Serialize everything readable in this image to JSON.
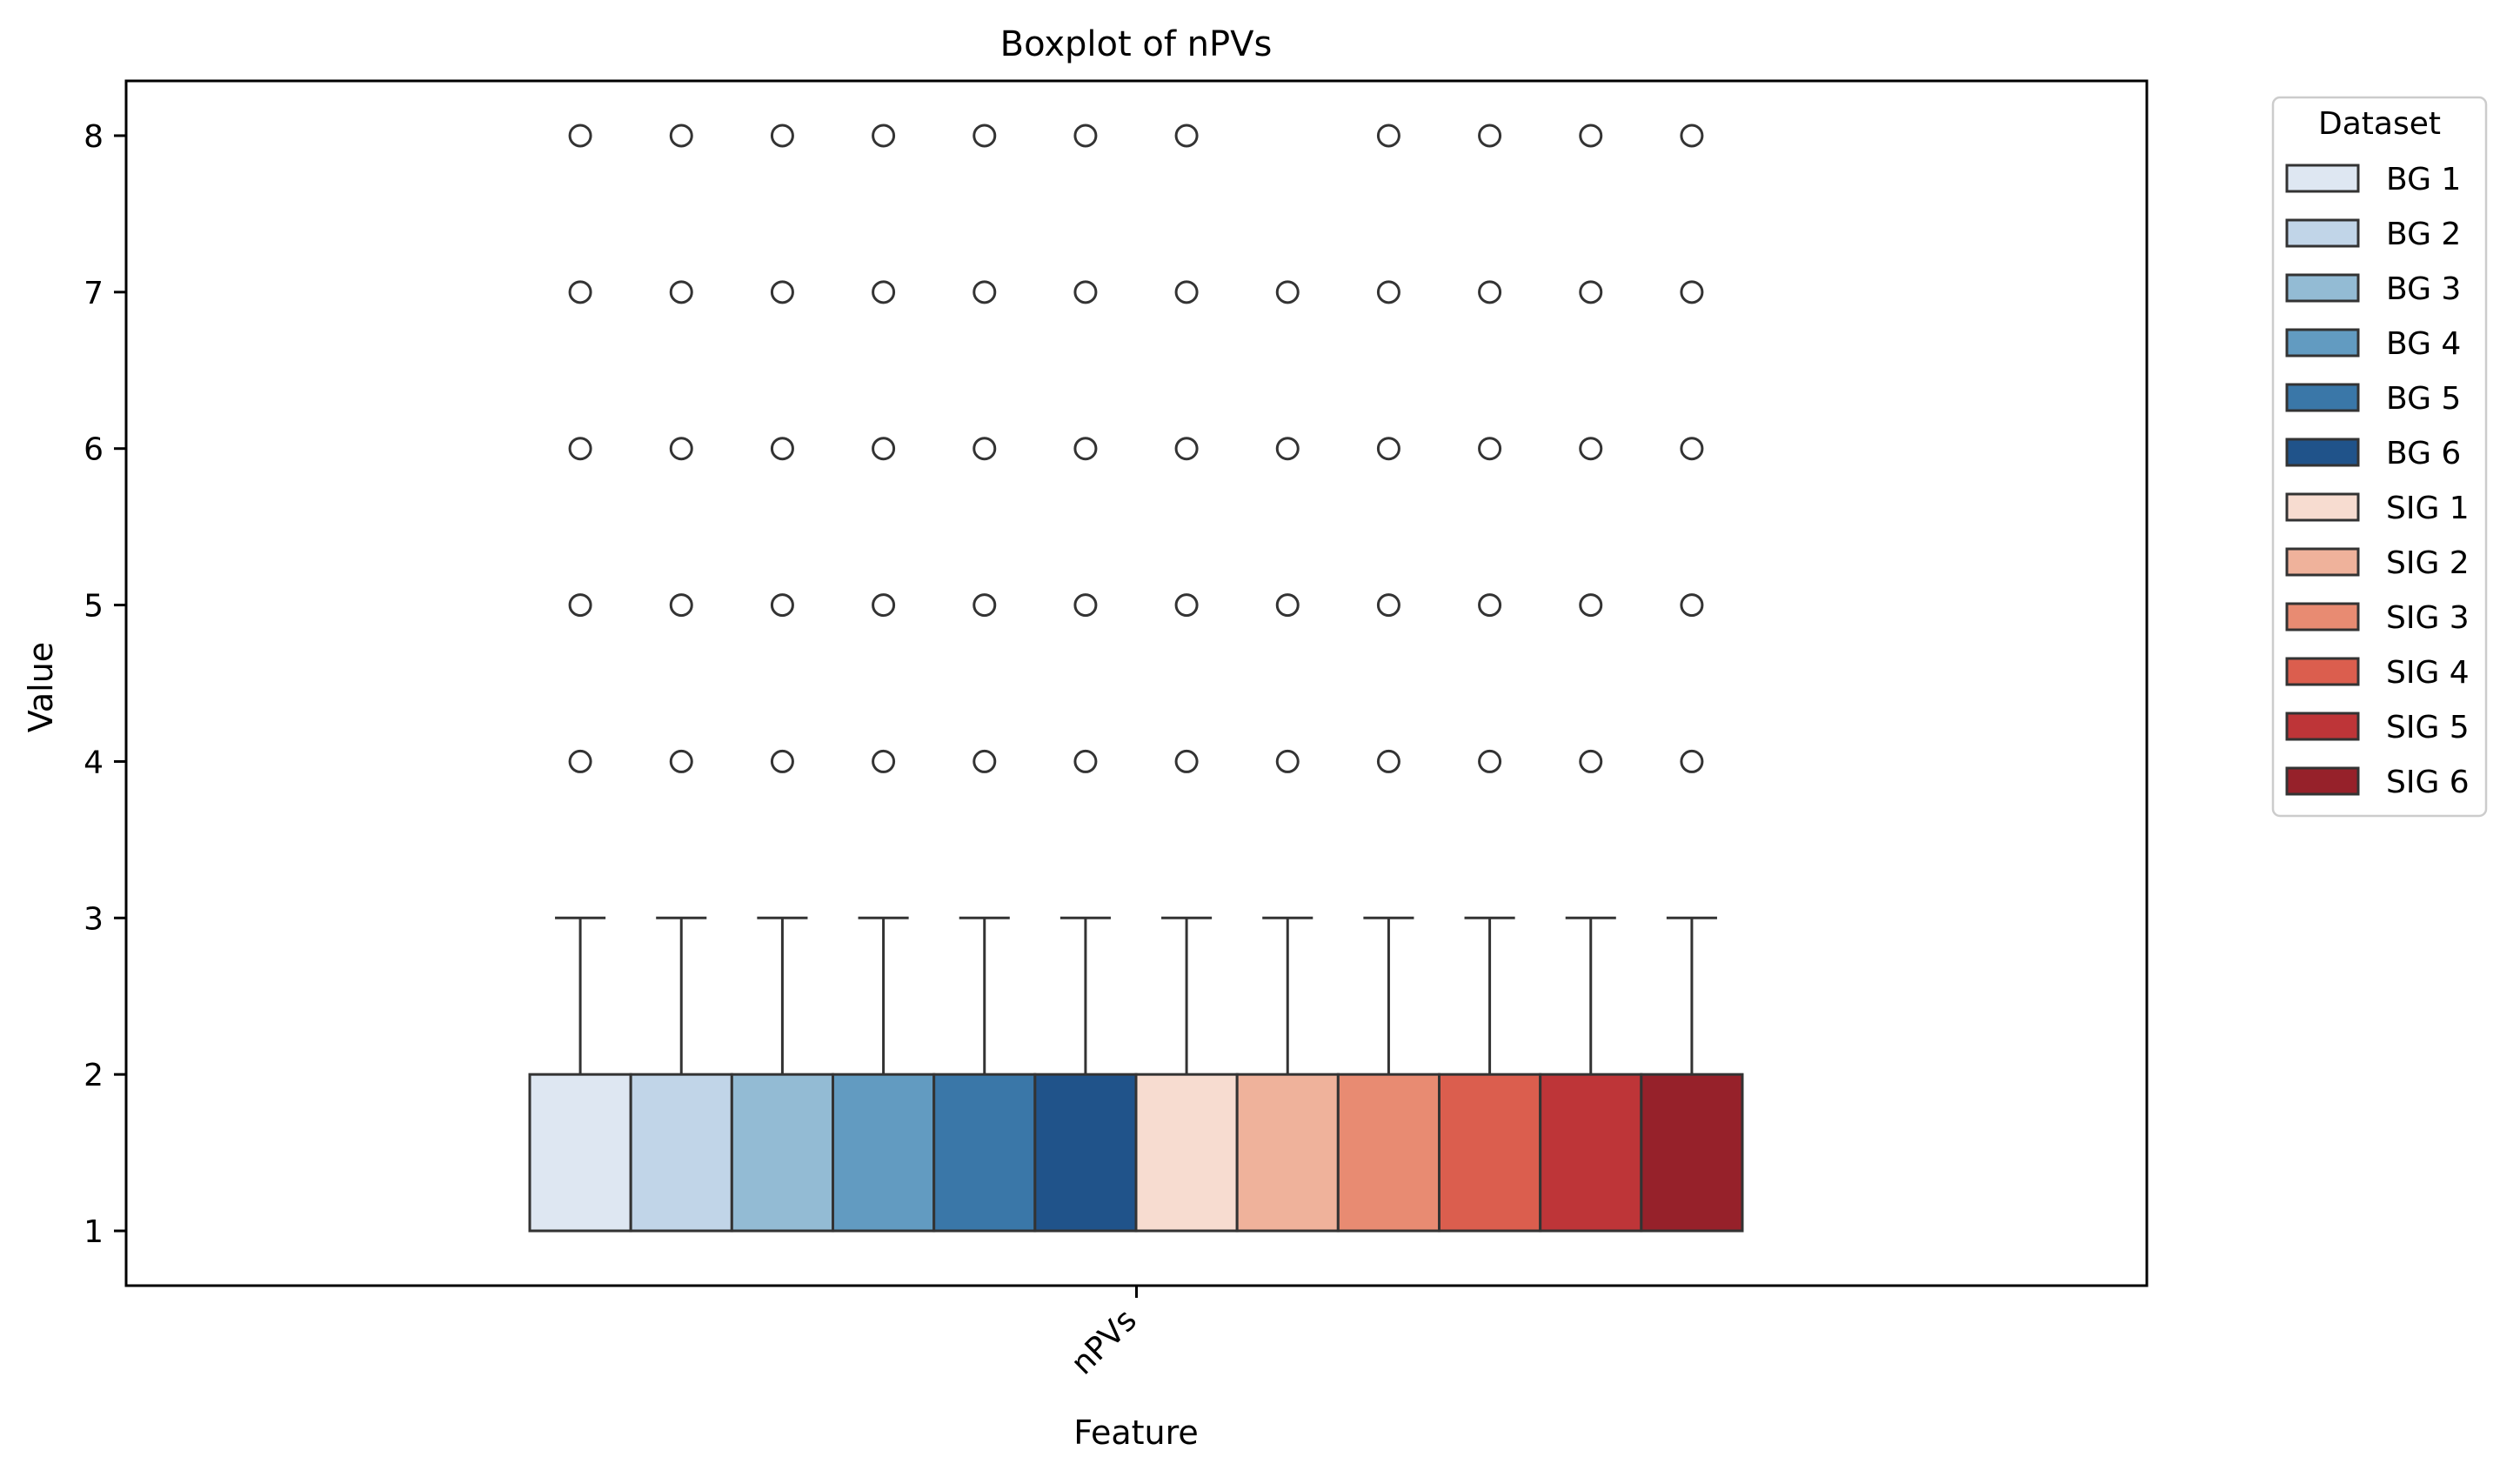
{
  "chart_data": {
    "type": "boxplot",
    "title": "Boxplot of nPVs",
    "xlabel": "Feature",
    "ylabel": "Value",
    "categories": [
      "nPVs"
    ],
    "ylim": [
      0.65,
      8.35
    ],
    "yticks": [
      1,
      2,
      3,
      4,
      5,
      6,
      7,
      8
    ],
    "grid": false,
    "legend": {
      "title": "Dataset",
      "placement": "outside-right"
    },
    "series": [
      {
        "name": "BG 1",
        "color": "#dee7f2",
        "q1": 1,
        "median": 1,
        "q3": 2,
        "whisker_low": 1,
        "whisker_high": 3,
        "outliers": [
          4,
          5,
          6,
          7,
          8
        ]
      },
      {
        "name": "BG 2",
        "color": "#c1d5e8",
        "q1": 1,
        "median": 1,
        "q3": 2,
        "whisker_low": 1,
        "whisker_high": 3,
        "outliers": [
          4,
          5,
          6,
          7,
          8
        ]
      },
      {
        "name": "BG 3",
        "color": "#93bbd4",
        "q1": 1,
        "median": 1,
        "q3": 2,
        "whisker_low": 1,
        "whisker_high": 3,
        "outliers": [
          4,
          5,
          6,
          7,
          8
        ]
      },
      {
        "name": "BG 4",
        "color": "#629bc1",
        "q1": 1,
        "median": 1,
        "q3": 2,
        "whisker_low": 1,
        "whisker_high": 3,
        "outliers": [
          4,
          5,
          6,
          7,
          8
        ]
      },
      {
        "name": "BG 5",
        "color": "#3a77a8",
        "q1": 1,
        "median": 1,
        "q3": 2,
        "whisker_low": 1,
        "whisker_high": 3,
        "outliers": [
          4,
          5,
          6,
          7,
          8
        ]
      },
      {
        "name": "BG 6",
        "color": "#20538a",
        "q1": 1,
        "median": 1,
        "q3": 2,
        "whisker_low": 1,
        "whisker_high": 3,
        "outliers": [
          4,
          5,
          6,
          7,
          8
        ]
      },
      {
        "name": "SIG 1",
        "color": "#f7dcd0",
        "q1": 1,
        "median": 1,
        "q3": 2,
        "whisker_low": 1,
        "whisker_high": 3,
        "outliers": [
          4,
          5,
          6,
          7,
          8
        ]
      },
      {
        "name": "SIG 2",
        "color": "#efb29b",
        "q1": 1,
        "median": 1,
        "q3": 2,
        "whisker_low": 1,
        "whisker_high": 3,
        "outliers": [
          4,
          5,
          6,
          7
        ]
      },
      {
        "name": "SIG 3",
        "color": "#e88b72",
        "q1": 1,
        "median": 1,
        "q3": 2,
        "whisker_low": 1,
        "whisker_high": 3,
        "outliers": [
          4,
          5,
          6,
          7,
          8
        ]
      },
      {
        "name": "SIG 4",
        "color": "#db5e4e",
        "q1": 1,
        "median": 1,
        "q3": 2,
        "whisker_low": 1,
        "whisker_high": 3,
        "outliers": [
          4,
          5,
          6,
          7,
          8
        ]
      },
      {
        "name": "SIG 5",
        "color": "#be3538",
        "q1": 1,
        "median": 1,
        "q3": 2,
        "whisker_low": 1,
        "whisker_high": 3,
        "outliers": [
          4,
          5,
          6,
          7,
          8
        ]
      },
      {
        "name": "SIG 6",
        "color": "#96212a",
        "q1": 1,
        "median": 1,
        "q3": 2,
        "whisker_low": 1,
        "whisker_high": 3,
        "outliers": [
          4,
          5,
          6,
          7,
          8
        ]
      }
    ]
  }
}
